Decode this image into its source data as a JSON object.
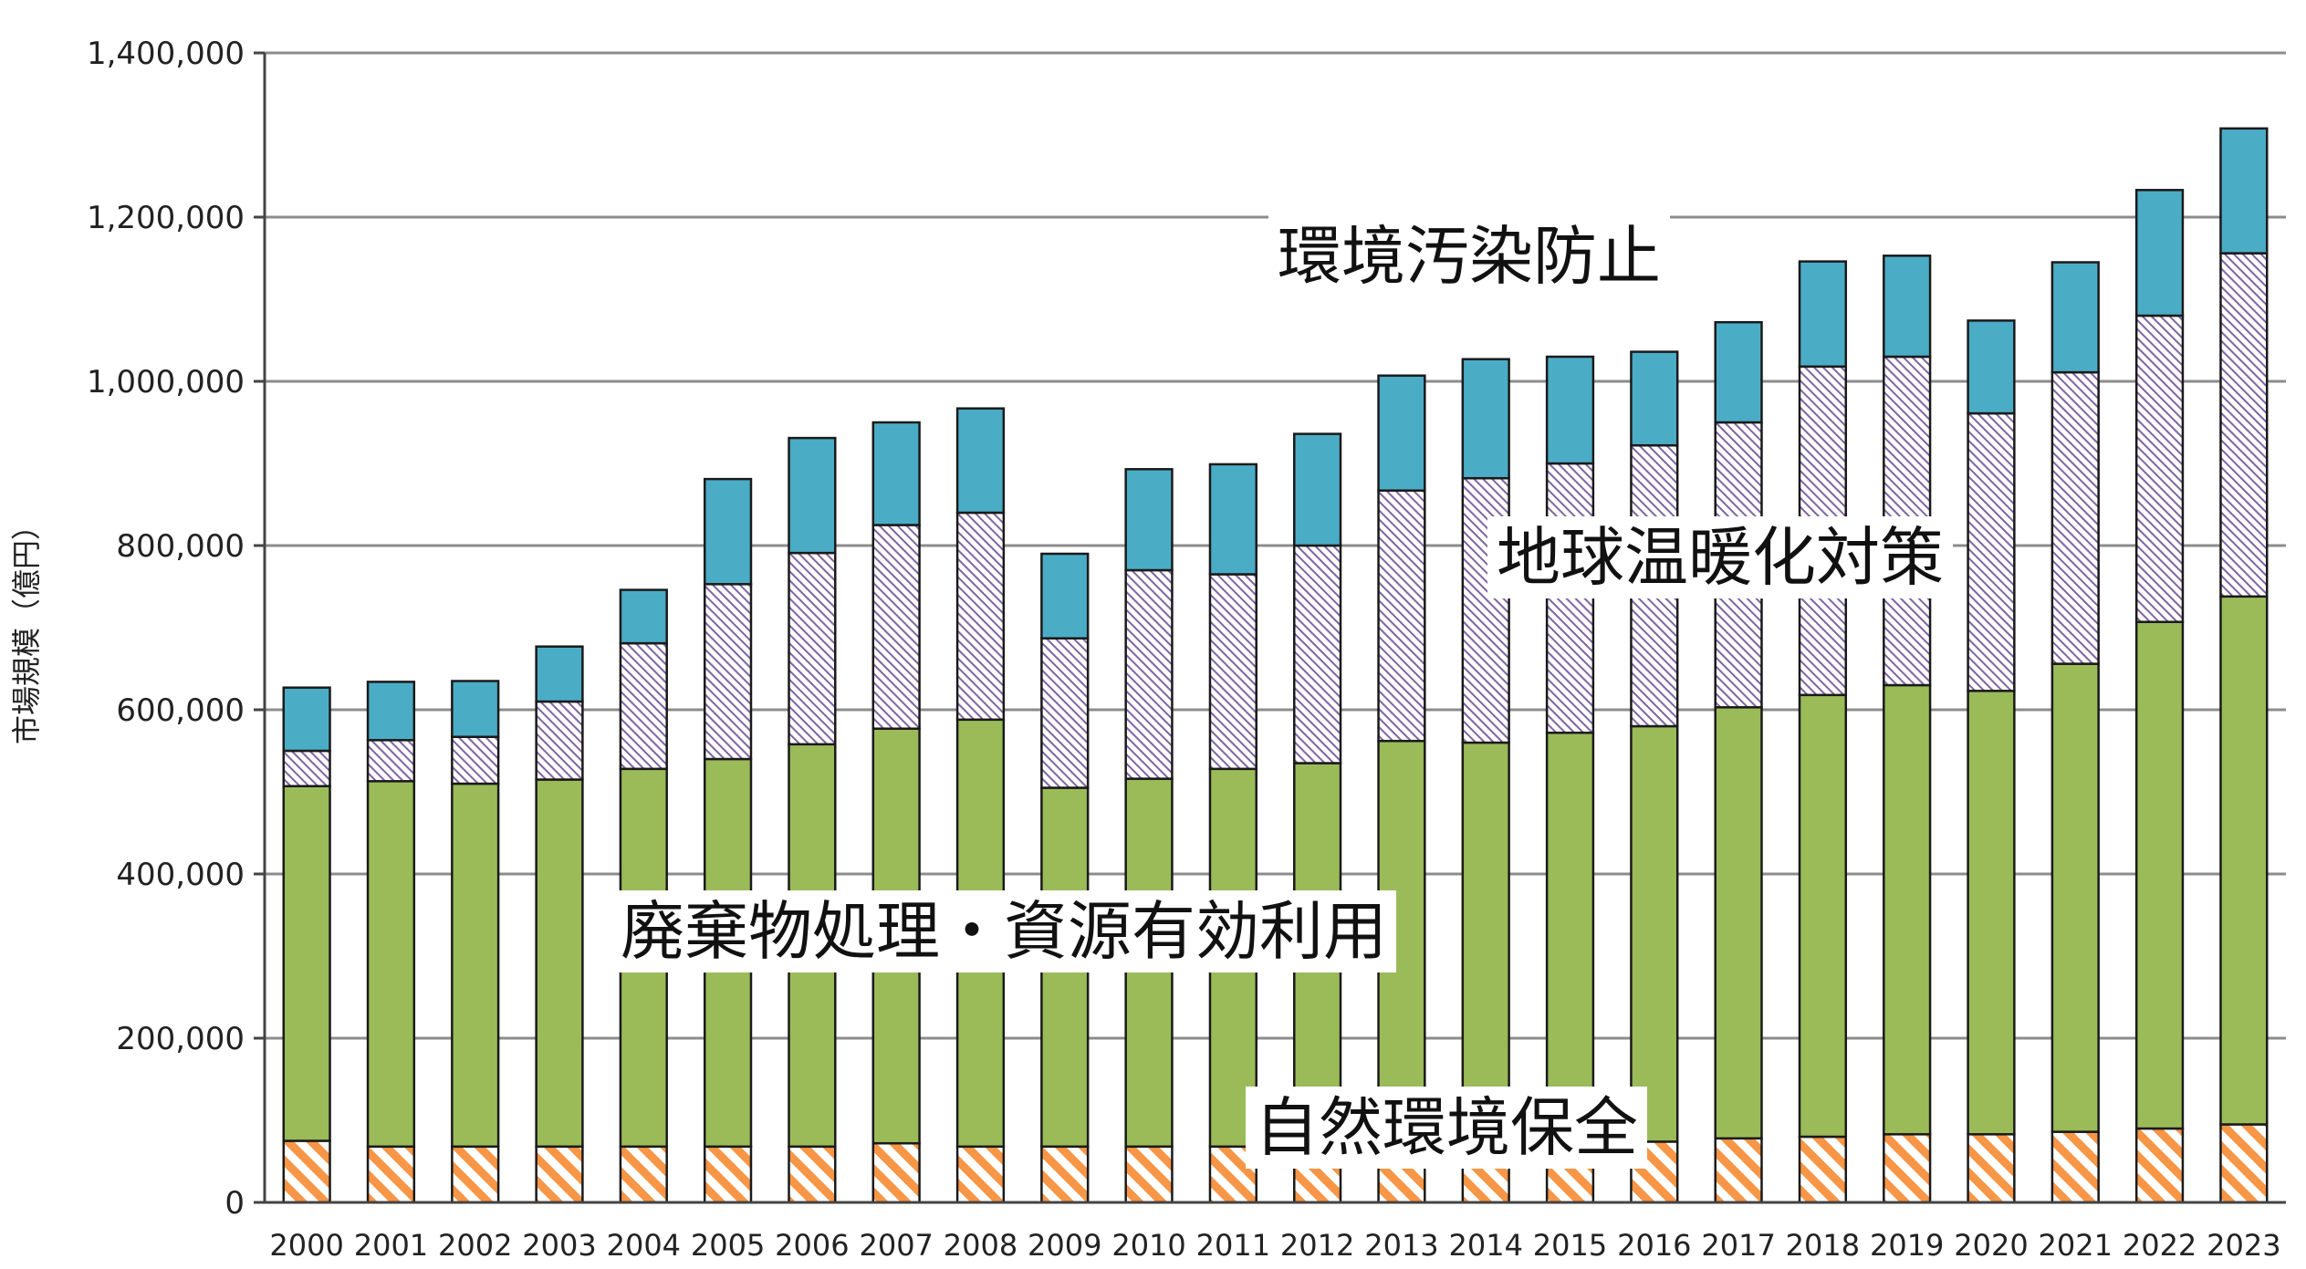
{
  "chart_data": {
    "type": "bar",
    "stacked": true,
    "ylabel": "市場規模（億円）",
    "ylim": [
      0,
      1400000
    ],
    "yticks": [
      0,
      200000,
      400000,
      600000,
      800000,
      1000000,
      1200000,
      1400000
    ],
    "ytick_labels": [
      "0",
      "200,000",
      "400,000",
      "600,000",
      "800,000",
      "1,000,000",
      "1,200,000",
      "1,400,000"
    ],
    "grid": true,
    "categories": [
      "2000",
      "2001",
      "2002",
      "2003",
      "2004",
      "2005",
      "2006",
      "2007",
      "2008",
      "2009",
      "2010",
      "2011",
      "2012",
      "2013",
      "2014",
      "2015",
      "2016",
      "2017",
      "2018",
      "2019",
      "2020",
      "2021",
      "2022",
      "2023"
    ],
    "series": [
      {
        "name": "自然環境保全",
        "color": "#f79646",
        "pattern": "diagonal-hatch",
        "values": [
          75000,
          68000,
          68000,
          68000,
          68000,
          68000,
          68000,
          72000,
          68000,
          68000,
          68000,
          68000,
          70000,
          72000,
          72000,
          72000,
          74000,
          78000,
          80000,
          83000,
          83000,
          86000,
          90000,
          95000
        ]
      },
      {
        "name": "廃棄物処理・資源有効利用",
        "color": "#9bbb59",
        "pattern": "solid",
        "values": [
          432000,
          445000,
          442000,
          447000,
          460000,
          472000,
          490000,
          505000,
          520000,
          437000,
          448000,
          460000,
          465000,
          490000,
          488000,
          500000,
          506000,
          525000,
          538000,
          547000,
          540000,
          570000,
          617000,
          643000
        ]
      },
      {
        "name": "地球温暖化対策",
        "color": "#8064a2",
        "pattern": "diagonal-hatch",
        "values": [
          43000,
          50000,
          57000,
          95000,
          153000,
          213000,
          233000,
          248000,
          252000,
          182000,
          254000,
          237000,
          265000,
          305000,
          322000,
          328000,
          342000,
          347000,
          400000,
          400000,
          338000,
          355000,
          373000,
          418000
        ]
      },
      {
        "name": "環境汚染防止",
        "color": "#4bacc6",
        "pattern": "solid",
        "values": [
          77000,
          71000,
          68000,
          67000,
          65000,
          128000,
          140000,
          125000,
          127000,
          103000,
          123000,
          134000,
          136000,
          140000,
          145000,
          130000,
          114000,
          122000,
          128000,
          123000,
          113000,
          134000,
          153000,
          152000
        ]
      }
    ]
  }
}
